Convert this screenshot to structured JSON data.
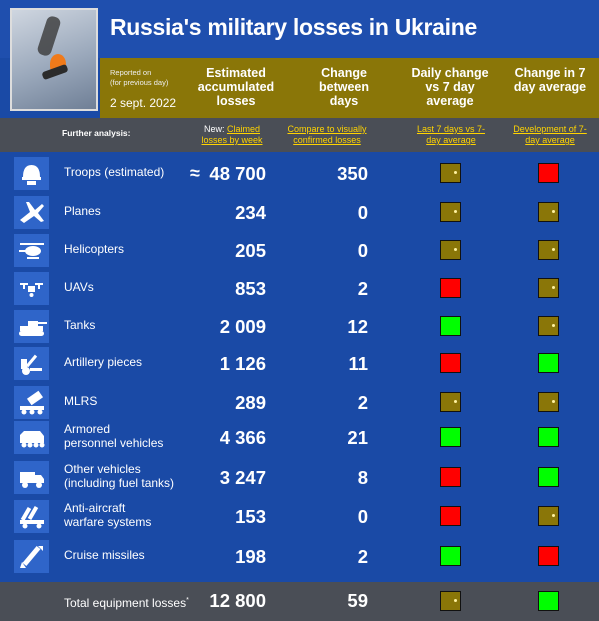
{
  "title": "Russia's military losses in Ukraine",
  "reported_on": "Reported on",
  "reported_note": "(for previous day)",
  "reported_date": "2 sept. 2022",
  "columns": {
    "estimated": "Estimated accumulated losses",
    "change": "Change between days",
    "daily": "Daily change vs 7 day average",
    "change7": "Change in 7 day average"
  },
  "further": {
    "label": "Further analysis:",
    "new_prefix": "New:",
    "claimed": "Claimed losses by week",
    "compare": "Compare to visually confirmed losses",
    "last7": "Last 7 days vs 7-day average",
    "development": "Development of 7-day average"
  },
  "colors": {
    "red": "#ff0000",
    "green": "#00ff00",
    "flat": "#8a7608"
  },
  "rows": [
    {
      "icon": "helmet-icon",
      "label": "Troops (estimated)",
      "approx": "≈",
      "value": "48 700",
      "change": "350",
      "daily": "flat",
      "avg": "red"
    },
    {
      "icon": "plane-icon",
      "label": "Planes",
      "value": "234",
      "change": "0",
      "daily": "flat",
      "avg": "flat"
    },
    {
      "icon": "helicopter-icon",
      "label": "Helicopters",
      "value": "205",
      "change": "0",
      "daily": "flat",
      "avg": "flat"
    },
    {
      "icon": "drone-icon",
      "label": "UAVs",
      "value": "853",
      "change": "2",
      "daily": "red",
      "avg": "flat"
    },
    {
      "icon": "tank-icon",
      "label": "Tanks",
      "value": "2 009",
      "change": "12",
      "daily": "green",
      "avg": "flat"
    },
    {
      "icon": "artillery-icon",
      "label": "Artillery pieces",
      "value": "1 126",
      "change": "11",
      "daily": "red",
      "avg": "green"
    },
    {
      "icon": "mlrs-icon",
      "label": "MLRS",
      "value": "289",
      "change": "2",
      "daily": "flat",
      "avg": "flat"
    },
    {
      "icon": "apc-icon",
      "label_1": "Armored",
      "label_2": "personnel vehicles",
      "value": "4 366",
      "change": "21",
      "daily": "green",
      "avg": "green"
    },
    {
      "icon": "truck-icon",
      "label_1": "Other vehicles",
      "label_2": "(including fuel tanks)",
      "value": "3 247",
      "change": "8",
      "daily": "red",
      "avg": "green"
    },
    {
      "icon": "anti-aircraft-icon",
      "label_1": "Anti-aircraft",
      "label_2": "warfare systems",
      "value": "153",
      "change": "0",
      "daily": "red",
      "avg": "flat"
    },
    {
      "icon": "missile-icon",
      "label": "Cruise missiles",
      "value": "198",
      "change": "2",
      "daily": "green",
      "avg": "red"
    }
  ],
  "total": {
    "label": "Total equipment losses",
    "footnote": "*",
    "value": "12 800",
    "change": "59",
    "daily": "flat",
    "avg": "green"
  }
}
